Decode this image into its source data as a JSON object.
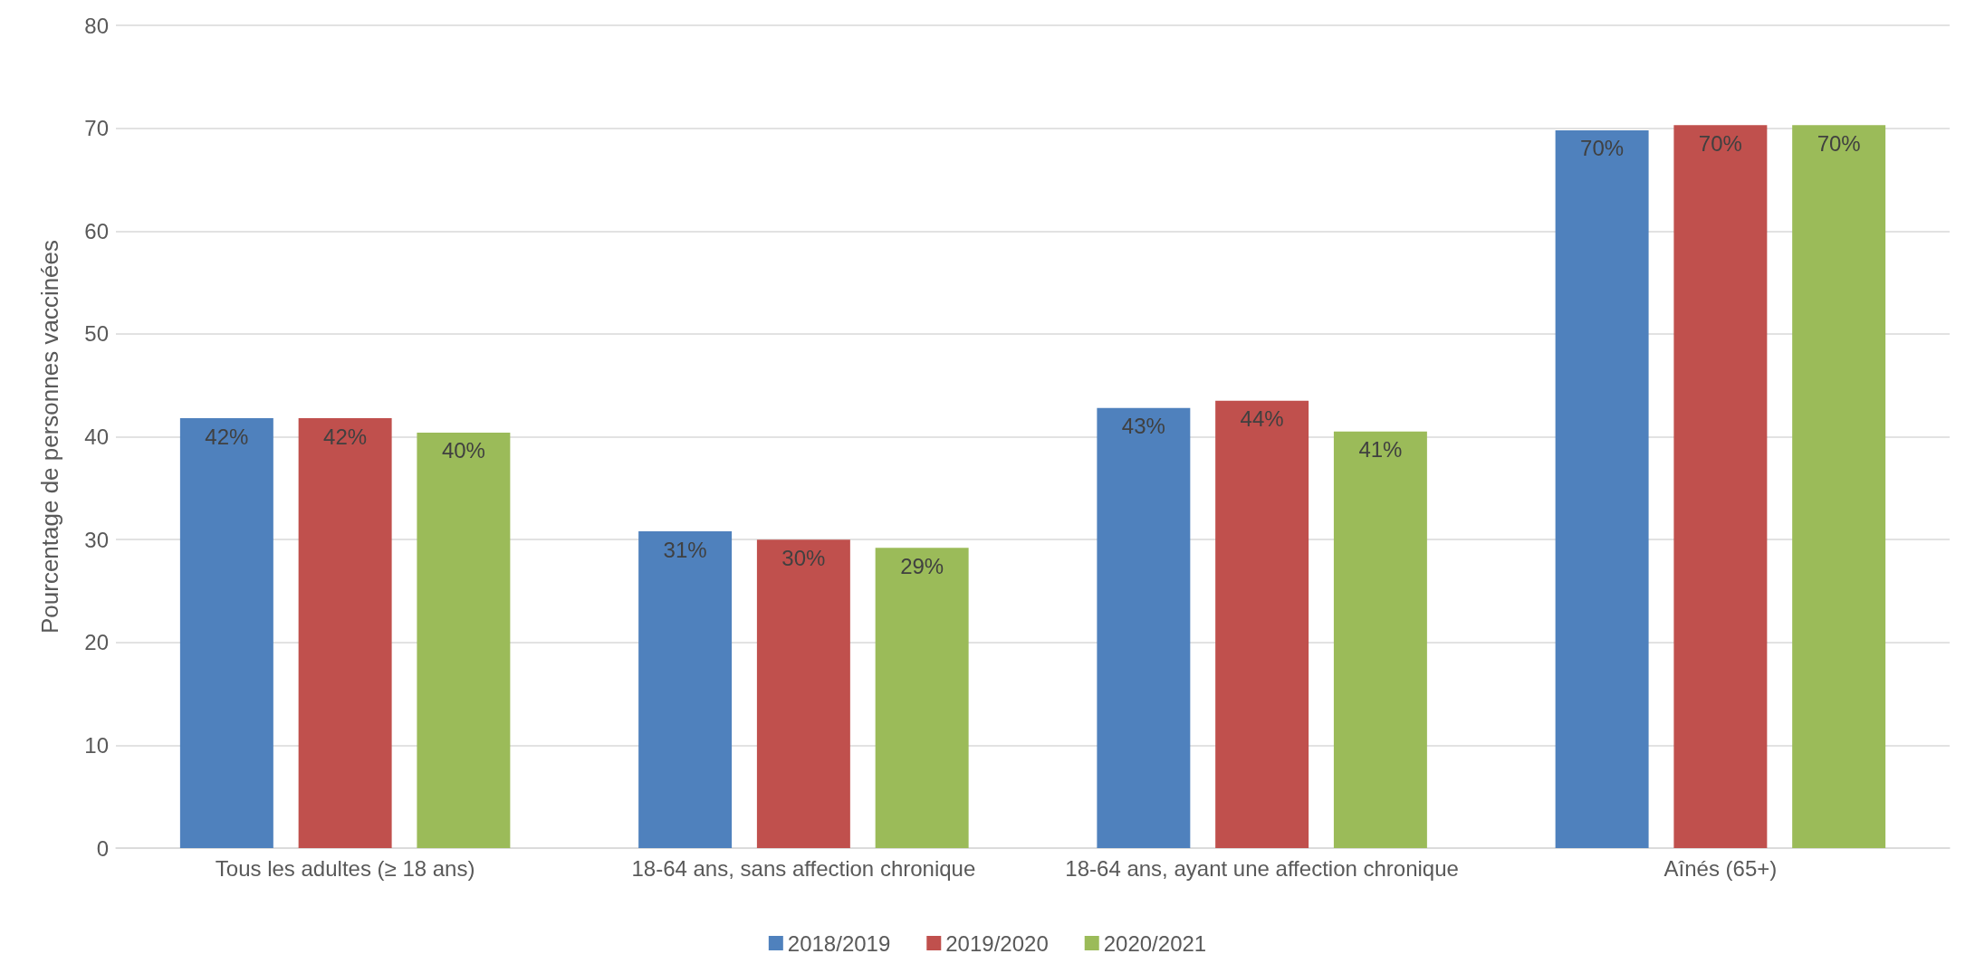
{
  "chart_data": {
    "type": "bar",
    "ylabel": "Pourcentage de personnes vaccinées",
    "categories": [
      "Tous les adultes (≥ 18 ans)",
      "18-64 ans, sans affection chronique",
      "18-64 ans, ayant une affection chronique",
      "Aînés (65+)"
    ],
    "series": [
      {
        "name": "2018/2019",
        "color": "#4f81bd",
        "values": [
          41.8,
          30.8,
          42.8,
          69.8
        ],
        "value_labels": [
          "42%",
          "31%",
          "43%",
          "70%"
        ]
      },
      {
        "name": "2019/2020",
        "color": "#c0504d",
        "values": [
          41.8,
          30.0,
          43.5,
          70.3
        ],
        "value_labels": [
          "42%",
          "30%",
          "44%",
          "70%"
        ]
      },
      {
        "name": "2020/2021",
        "color": "#9bbb59",
        "values": [
          40.4,
          29.2,
          40.5,
          70.3
        ],
        "value_labels": [
          "40%",
          "29%",
          "41%",
          "70%"
        ]
      }
    ],
    "ylim": [
      0,
      80
    ],
    "yticks": [
      0,
      10,
      20,
      30,
      40,
      50,
      60,
      70,
      80
    ],
    "grid": "y",
    "legend": "bottom"
  }
}
